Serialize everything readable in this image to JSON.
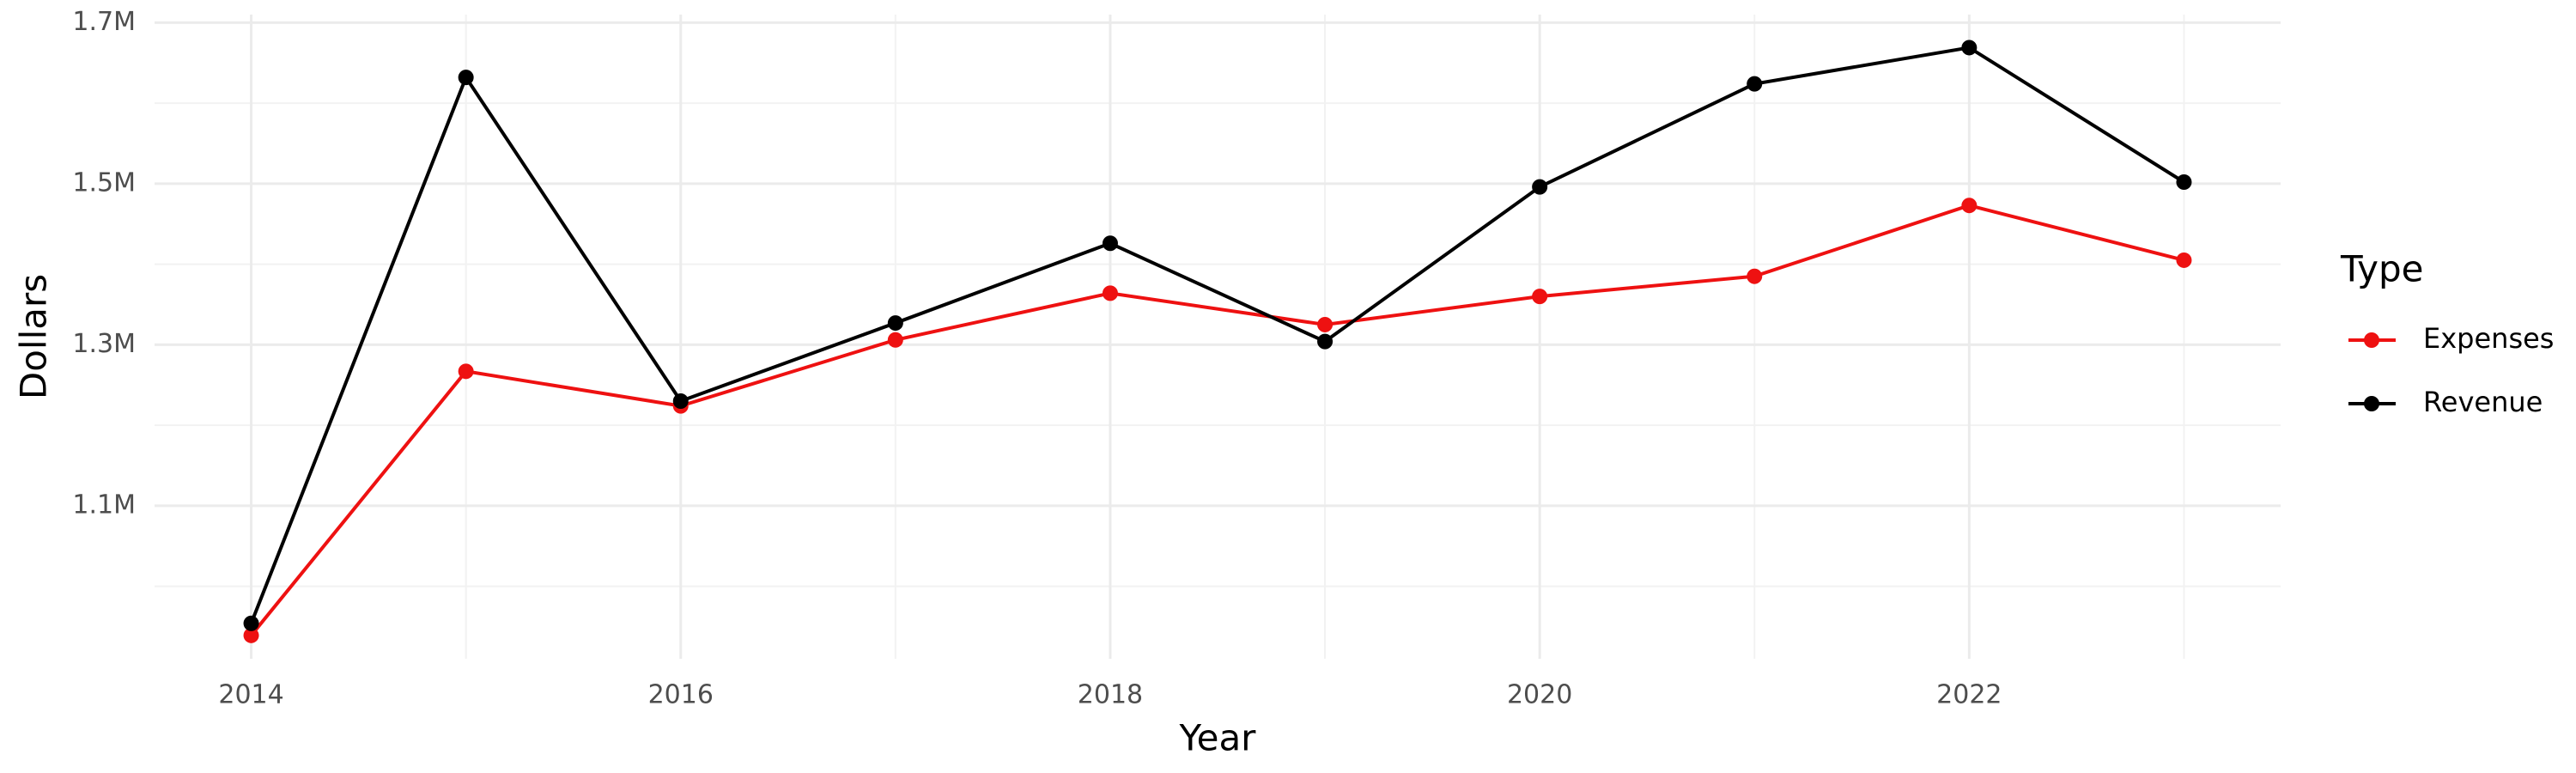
{
  "chart_data": {
    "type": "line",
    "x_label": "Year",
    "y_label": "Dollars",
    "legend_title": "Type",
    "x": [
      2014,
      2015,
      2016,
      2017,
      2018,
      2019,
      2020,
      2021,
      2022,
      2023
    ],
    "series": [
      {
        "name": "Expenses",
        "color": "#ee1111",
        "values": [
          939000,
          1267000,
          1224000,
          1306000,
          1364000,
          1325000,
          1360000,
          1385000,
          1473000,
          1405000
        ]
      },
      {
        "name": "Revenue",
        "color": "#000000",
        "values": [
          954000,
          1632000,
          1230000,
          1327000,
          1426000,
          1304000,
          1496000,
          1624000,
          1669000,
          1502000
        ]
      }
    ],
    "xlim": [
      2013.55,
      2023.45
    ],
    "xticks": [
      2014,
      2016,
      2018,
      2020,
      2022
    ],
    "ylim": [
      910000,
      1710000
    ],
    "yticks": [
      {
        "value": 1100000,
        "label": "1.1M"
      },
      {
        "value": 1300000,
        "label": "1.3M"
      },
      {
        "value": 1500000,
        "label": "1.5M"
      },
      {
        "value": 1700000,
        "label": "1.7M"
      }
    ],
    "grid": true,
    "legend": "right"
  }
}
